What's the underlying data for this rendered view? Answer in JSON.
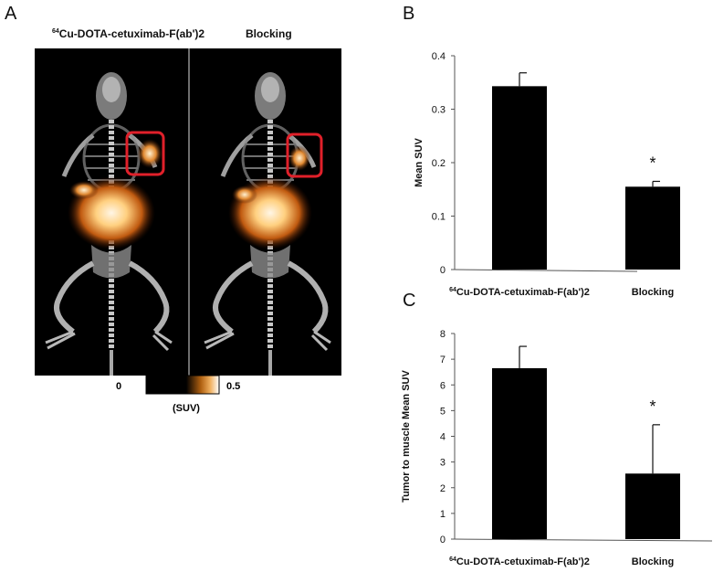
{
  "panels": {
    "a": {
      "letter": "A"
    },
    "b": {
      "letter": "B"
    },
    "c": {
      "letter": "C"
    }
  },
  "panel_a": {
    "title_left_prefix": "64",
    "title_left_main": "Cu-DOTA-cetuximab-F(ab')2",
    "title_right": "Blocking",
    "colorbar": {
      "min": "0",
      "max": "0.5",
      "unit": "(SUV)"
    },
    "highlight_color": "#e0202a"
  },
  "chart_data": [
    {
      "type": "bar",
      "title": "",
      "categories": [
        "Cu-DOTA-cetuximab-F(ab')2",
        "Blocking"
      ],
      "category_prefixes": [
        "64",
        ""
      ],
      "values": [
        0.343,
        0.155
      ],
      "errors": [
        0.025,
        0.01
      ],
      "significance": [
        "",
        "*"
      ],
      "ylabel": "Mean SUV",
      "xlabel": "",
      "ylim": [
        0,
        0.4
      ],
      "yticks": [
        "0",
        "0.1",
        "0.2",
        "0.3",
        "0.4"
      ],
      "bar_color": "#000000"
    },
    {
      "type": "bar",
      "title": "",
      "categories": [
        "Cu-DOTA-cetuximab-F(ab')2",
        "Blocking"
      ],
      "category_prefixes": [
        "64",
        ""
      ],
      "values": [
        6.65,
        2.55
      ],
      "errors": [
        0.85,
        1.9
      ],
      "significance": [
        "",
        "*"
      ],
      "ylabel": "Tumor to muscle Mean SUV",
      "xlabel": "",
      "ylim": [
        0,
        8
      ],
      "yticks": [
        "0",
        "1",
        "2",
        "3",
        "4",
        "5",
        "6",
        "7",
        "8"
      ],
      "bar_color": "#000000"
    }
  ]
}
